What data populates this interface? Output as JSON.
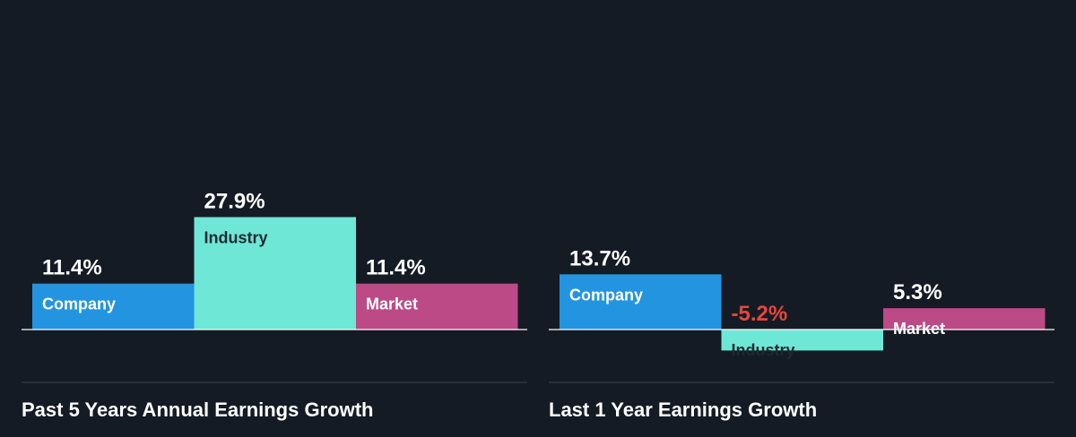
{
  "colors": {
    "background": "#151b24",
    "company": "#2394e0",
    "industry": "#6ee7d6",
    "market": "#bb4a87",
    "positive_label": "#ffffff",
    "negative_label": "#e8453c",
    "axis": "#ffffff",
    "divider": "#3a4150"
  },
  "chart_data": [
    {
      "type": "bar",
      "title": "Past 5 Years Annual Earnings Growth",
      "categories": [
        "Company",
        "Industry",
        "Market"
      ],
      "values": [
        11.4,
        27.9,
        11.4
      ],
      "value_labels": [
        "11.4%",
        "27.9%",
        "11.4%"
      ],
      "unit": "%",
      "ylim": [
        -10,
        32
      ],
      "grid": false,
      "legend": "none"
    },
    {
      "type": "bar",
      "title": "Last 1 Year Earnings Growth",
      "categories": [
        "Company",
        "Industry",
        "Market"
      ],
      "values": [
        13.7,
        -5.2,
        5.3
      ],
      "value_labels": [
        "13.7%",
        "-5.2%",
        "5.3%"
      ],
      "unit": "%",
      "ylim": [
        -10,
        32
      ],
      "grid": false,
      "legend": "none"
    }
  ]
}
